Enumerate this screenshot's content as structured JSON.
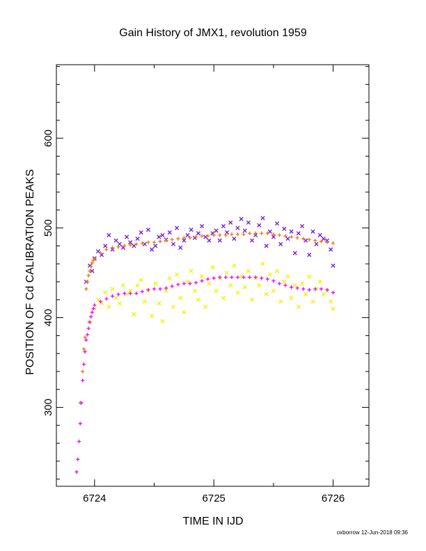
{
  "chart_data": {
    "type": "scatter",
    "title": "Gain History of JMX1, revolution 1959",
    "xlabel": "TIME IN IJD",
    "ylabel": "POSITION OF Cd CALIBRATION PEAKS",
    "xlim": [
      6723.68,
      6726.3
    ],
    "ylim": [
      212,
      682
    ],
    "x_ticks": [
      6724,
      6725,
      6726
    ],
    "y_ticks": [
      300,
      400,
      500,
      600
    ],
    "grid": false,
    "legend": "none",
    "footer": "oxborrow 12-Jun-2018 09:36",
    "series": [
      {
        "marker": "x",
        "color": "#7a1fd6",
        "description_key": "peak1-raw",
        "x": [
          6723.93,
          6723.96,
          6723.98,
          6724.0,
          6724.03,
          6724.06,
          6724.09,
          6724.12,
          6724.15,
          6724.18,
          6724.21,
          6724.24,
          6724.27,
          6724.3,
          6724.33,
          6724.36,
          6724.39,
          6724.42,
          6724.45,
          6724.48,
          6724.51,
          6724.54,
          6724.57,
          6724.6,
          6724.63,
          6724.66,
          6724.69,
          6724.72,
          6724.75,
          6724.78,
          6724.81,
          6724.84,
          6724.87,
          6724.9,
          6724.93,
          6724.96,
          6724.99,
          6725.02,
          6725.05,
          6725.08,
          6725.11,
          6725.14,
          6725.17,
          6725.2,
          6725.23,
          6725.26,
          6725.29,
          6725.32,
          6725.35,
          6725.38,
          6725.41,
          6725.44,
          6725.47,
          6725.5,
          6725.53,
          6725.56,
          6725.59,
          6725.62,
          6725.65,
          6725.68,
          6725.71,
          6725.74,
          6725.77,
          6725.8,
          6725.83,
          6725.86,
          6725.89,
          6725.92,
          6725.95,
          6725.98,
          6726.0
        ],
        "y": [
          440,
          458,
          452,
          466,
          474,
          470,
          480,
          492,
          476,
          486,
          482,
          478,
          490,
          484,
          480,
          488,
          495,
          482,
          498,
          476,
          480,
          490,
          492,
          487,
          495,
          482,
          500,
          478,
          486,
          492,
          498,
          489,
          494,
          502,
          490,
          486,
          494,
          497,
          486,
          502,
          495,
          506,
          488,
          500,
          510,
          497,
          506,
          486,
          492,
          503,
          511,
          480,
          496,
          490,
          505,
          482,
          499,
          488,
          496,
          472,
          494,
          502,
          486,
          470,
          496,
          482,
          492,
          488,
          486,
          476,
          458
        ]
      },
      {
        "marker": "plus",
        "color": "#f07a1a",
        "description_key": "peak1-smooth",
        "x": [
          6723.88,
          6723.9,
          6723.91,
          6723.92,
          6723.93,
          6723.94,
          6723.95,
          6723.96,
          6723.97,
          6723.98,
          6723.99,
          6724.0,
          6724.05,
          6724.1,
          6724.15,
          6724.2,
          6724.25,
          6724.3,
          6724.35,
          6724.4,
          6724.45,
          6724.5,
          6724.55,
          6724.6,
          6724.65,
          6724.7,
          6724.75,
          6724.8,
          6724.85,
          6724.9,
          6724.95,
          6725.0,
          6725.05,
          6725.1,
          6725.15,
          6725.2,
          6725.25,
          6725.3,
          6725.35,
          6725.4,
          6725.45,
          6725.5,
          6725.55,
          6725.6,
          6725.65,
          6725.7,
          6725.75,
          6725.8,
          6725.85,
          6725.9,
          6725.95,
          6726.0
        ],
        "y": [
          305,
          340,
          365,
          378,
          432,
          440,
          447,
          452,
          457,
          461,
          464,
          466,
          472,
          476,
          478,
          479,
          480,
          481,
          482,
          483,
          484,
          484,
          485,
          486,
          487,
          488,
          489,
          489,
          490,
          491,
          491,
          492,
          492,
          492,
          493,
          493,
          493,
          494,
          494,
          494,
          494,
          493,
          492,
          491,
          490,
          489,
          488,
          487,
          486,
          485,
          484,
          483
        ]
      },
      {
        "marker": "x",
        "color": "#f4f010",
        "description_key": "peak2-raw",
        "x": [
          6723.96,
          6724.0,
          6724.03,
          6724.06,
          6724.09,
          6724.12,
          6724.15,
          6724.18,
          6724.21,
          6724.24,
          6724.27,
          6724.3,
          6724.33,
          6724.36,
          6724.39,
          6724.42,
          6724.45,
          6724.48,
          6724.51,
          6724.54,
          6724.57,
          6724.6,
          6724.63,
          6724.66,
          6724.69,
          6724.72,
          6724.75,
          6724.78,
          6724.81,
          6724.84,
          6724.87,
          6724.9,
          6724.93,
          6724.96,
          6724.99,
          6725.02,
          6725.05,
          6725.08,
          6725.11,
          6725.14,
          6725.17,
          6725.2,
          6725.23,
          6725.26,
          6725.29,
          6725.32,
          6725.35,
          6725.38,
          6725.41,
          6725.44,
          6725.47,
          6725.5,
          6725.53,
          6725.56,
          6725.59,
          6725.62,
          6725.65,
          6725.68,
          6725.71,
          6725.74,
          6725.77,
          6725.8,
          6725.83,
          6725.86,
          6725.89,
          6725.92,
          6725.95,
          6725.98,
          6726.0
        ],
        "y": [
          395,
          410,
          420,
          416,
          428,
          412,
          432,
          422,
          416,
          436,
          426,
          430,
          404,
          436,
          442,
          418,
          430,
          402,
          438,
          416,
          396,
          430,
          444,
          412,
          448,
          422,
          406,
          440,
          452,
          430,
          420,
          446,
          412,
          438,
          456,
          430,
          444,
          422,
          450,
          436,
          458,
          428,
          446,
          434,
          452,
          420,
          444,
          436,
          460,
          426,
          448,
          430,
          452,
          418,
          440,
          446,
          422,
          436,
          412,
          438,
          426,
          446,
          418,
          432,
          440,
          426,
          430,
          418,
          410
        ]
      },
      {
        "marker": "plus",
        "color": "#ee10ee",
        "description_key": "peak2-smooth",
        "x": [
          6723.85,
          6723.86,
          6723.87,
          6723.88,
          6723.89,
          6723.9,
          6723.91,
          6723.92,
          6723.93,
          6723.94,
          6723.95,
          6723.96,
          6723.97,
          6723.98,
          6723.99,
          6724.0,
          6724.05,
          6724.1,
          6724.15,
          6724.2,
          6724.25,
          6724.3,
          6724.35,
          6724.4,
          6724.45,
          6724.5,
          6724.55,
          6724.6,
          6724.65,
          6724.7,
          6724.75,
          6724.8,
          6724.85,
          6724.9,
          6724.95,
          6725.0,
          6725.05,
          6725.1,
          6725.15,
          6725.2,
          6725.25,
          6725.3,
          6725.35,
          6725.4,
          6725.45,
          6725.5,
          6725.55,
          6725.6,
          6725.65,
          6725.7,
          6725.75,
          6725.8,
          6725.85,
          6725.9,
          6725.95,
          6726.0
        ],
        "y": [
          228,
          242,
          262,
          282,
          305,
          330,
          348,
          362,
          375,
          381,
          388,
          395,
          401,
          406,
          410,
          414,
          418,
          421,
          424,
          426,
          427,
          427,
          427,
          429,
          431,
          432,
          432,
          433,
          435,
          437,
          438,
          438,
          439,
          441,
          443,
          444,
          445,
          445,
          445,
          445,
          445,
          445,
          445,
          444,
          443,
          441,
          438,
          436,
          434,
          433,
          432,
          431,
          432,
          432,
          431,
          428
        ]
      }
    ]
  }
}
